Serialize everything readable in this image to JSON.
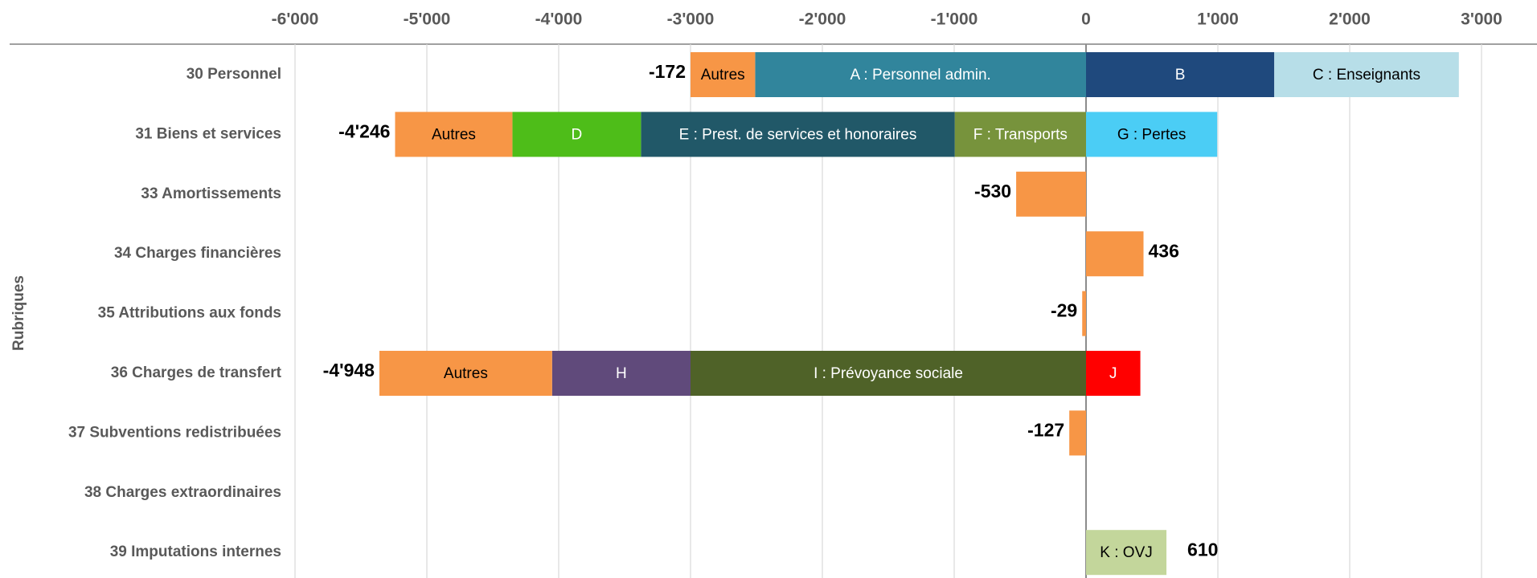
{
  "chart_data": {
    "type": "stacked_barh",
    "ylabel": "Rubriques",
    "categories": [
      "30 Personnel",
      "31 Biens et services",
      "33 Amortissements",
      "34 Charges financières",
      "35 Attributions aux fonds ",
      "36 Charges de transfert",
      "37 Subventions redistribuées",
      "38 Charges extraordinaires",
      "39 Imputations internes"
    ],
    "xlim": [
      -6000,
      3000
    ],
    "xticks": [
      {
        "value": -6000,
        "label": "-6'000"
      },
      {
        "value": -5000,
        "label": "-5'000"
      },
      {
        "value": -4000,
        "label": "-4'000"
      },
      {
        "value": -3000,
        "label": "-3'000"
      },
      {
        "value": -2000,
        "label": "-2'000"
      },
      {
        "value": -1000,
        "label": "-1'000"
      },
      0,
      {
        "value": 1000,
        "label": "1'000"
      },
      {
        "value": 2000,
        "label": "2'000"
      },
      {
        "value": 3000,
        "label": "3'000"
      }
    ],
    "grid": true,
    "series": [
      {
        "name": "Autres",
        "color": "#f79646",
        "label_color": "#000000",
        "values": [
          -490,
          -890,
          null,
          null,
          null,
          -1310,
          null,
          null,
          null
        ]
      },
      {
        "color": "#f79646",
        "values": [
          null,
          null,
          -530,
          436,
          -29,
          null,
          -127,
          null,
          null
        ]
      },
      {
        "name": "A : Personnel admin.",
        "color": "#31859c",
        "label_color": "#ffffff",
        "values": [
          -2510,
          null,
          null,
          null,
          null,
          null,
          null,
          null,
          null
        ]
      },
      {
        "name": "B",
        "color": "#1f497d",
        "label_color": "#ffffff",
        "values": [
          1428,
          null,
          null,
          null,
          null,
          null,
          null,
          null,
          null
        ]
      },
      {
        "name": "C : Enseignants",
        "color": "#b7dee8",
        "label_color": "#000000",
        "values": [
          1400,
          null,
          null,
          null,
          null,
          null,
          null,
          null,
          null
        ]
      },
      {
        "name": "D",
        "color": "#4ebd19",
        "label_color": "#ffffff",
        "values": [
          null,
          -975,
          null,
          null,
          null,
          null,
          null,
          null,
          null
        ]
      },
      {
        "name": "E : Prest. de services et honoraires",
        "color": "#215868",
        "label_color": "#ffffff",
        "values": [
          null,
          -2380,
          null,
          null,
          null,
          null,
          null,
          null,
          null
        ]
      },
      {
        "name": "F : Transports",
        "color": "#77933c",
        "label_color": "#ffffff",
        "values": [
          null,
          -996,
          null,
          null,
          null,
          null,
          null,
          null,
          null
        ]
      },
      {
        "name": "G : Pertes",
        "color": "#4bcdf5",
        "label_color": "#000000",
        "values": [
          null,
          995,
          null,
          null,
          null,
          null,
          null,
          null,
          null
        ]
      },
      {
        "name": "H",
        "color": "#604a7b",
        "label_color": "#ffffff",
        "values": [
          null,
          null,
          null,
          null,
          null,
          -1050,
          null,
          null,
          null
        ]
      },
      {
        "name": "I : Prévoyance sociale",
        "color": "#4f6228",
        "label_color": "#ffffff",
        "values": [
          null,
          null,
          null,
          null,
          null,
          -3000,
          null,
          null,
          null
        ]
      },
      {
        "name": "J",
        "color": "#ff0000",
        "label_color": "#ffffff",
        "values": [
          null,
          null,
          null,
          null,
          null,
          412,
          null,
          null,
          null
        ]
      },
      {
        "name": "K : OVJ",
        "color": "#c3d69b",
        "label_color": "#000000",
        "values": [
          null,
          null,
          null,
          null,
          null,
          null,
          null,
          null,
          610
        ]
      }
    ],
    "totals": [
      -172,
      -4246,
      -530,
      436,
      -29,
      -4948,
      -127,
      null,
      610
    ],
    "total_labels": [
      "-172",
      "-4'246",
      "-530",
      "436",
      "-29",
      "-4'948",
      "-127",
      null,
      "610"
    ]
  }
}
